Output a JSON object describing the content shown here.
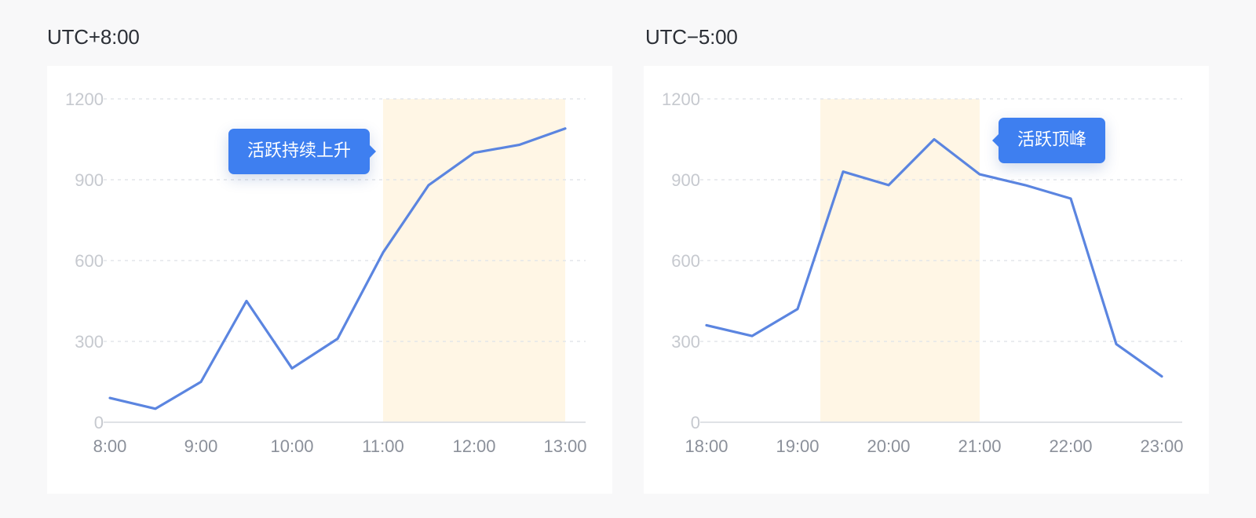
{
  "charts": [
    {
      "title": "UTC+8:00",
      "tooltip": {
        "label": "活跃持续上升",
        "arrow": "right"
      },
      "chart_data": {
        "type": "line",
        "title": "UTC+8:00",
        "xlabel": "",
        "ylabel": "",
        "x_ticks": [
          "8:00",
          "9:00",
          "10:00",
          "11:00",
          "12:00",
          "13:00"
        ],
        "y_ticks": [
          0,
          300,
          600,
          900,
          1200
        ],
        "xlim": [
          "8:00",
          "13:00"
        ],
        "ylim": [
          0,
          1200
        ],
        "grid": true,
        "highlight_range": [
          "11:00",
          "13:00"
        ],
        "highlight_color": "#fff6e5",
        "line_color": "#5b85e0",
        "series": [
          {
            "x": [
              "8:00",
              "8:30",
              "9:00",
              "9:30",
              "10:00",
              "10:30",
              "11:00",
              "11:30",
              "12:00",
              "12:30",
              "13:00"
            ],
            "values": [
              90,
              50,
              150,
              450,
              200,
              310,
              630,
              880,
              1000,
              1030,
              1090
            ]
          }
        ]
      }
    },
    {
      "title": "UTC−5:00",
      "tooltip": {
        "label": "活跃顶峰",
        "arrow": "left"
      },
      "chart_data": {
        "type": "line",
        "title": "UTC−5:00",
        "xlabel": "",
        "ylabel": "",
        "x_ticks": [
          "18:00",
          "19:00",
          "20:00",
          "21:00",
          "22:00",
          "23:00"
        ],
        "y_ticks": [
          0,
          300,
          600,
          900,
          1200
        ],
        "xlim": [
          "18:00",
          "23:00"
        ],
        "ylim": [
          0,
          1200
        ],
        "grid": true,
        "highlight_range": [
          "19:15",
          "21:00"
        ],
        "highlight_color": "#fff6e5",
        "line_color": "#5b85e0",
        "series": [
          {
            "x": [
              "18:00",
              "18:30",
              "19:00",
              "19:30",
              "20:00",
              "20:30",
              "21:00",
              "21:30",
              "22:00",
              "22:30",
              "23:00"
            ],
            "values": [
              360,
              320,
              420,
              930,
              880,
              1050,
              920,
              880,
              830,
              290,
              170
            ]
          }
        ]
      }
    }
  ]
}
